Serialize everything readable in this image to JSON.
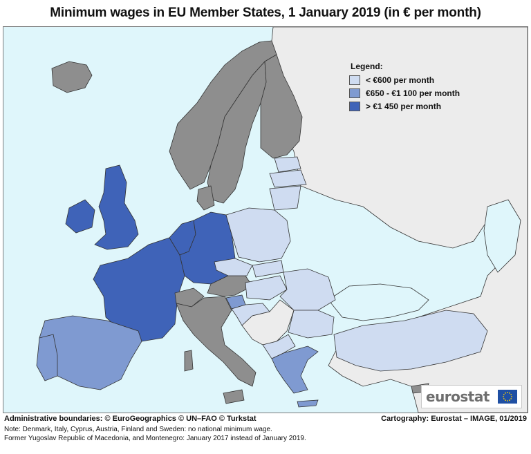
{
  "title": "Minimum wages in EU Member States, 1 January 2019 (in € per month)",
  "colors": {
    "sea": "#dff6fb",
    "non_eu": "#ececec",
    "no_minimum_wage": "#8e8e8e",
    "low": "#cfdcf1",
    "mid": "#7f9ad1",
    "high": "#3f63b8",
    "border": "#333333"
  },
  "legend": {
    "title": "Legend:",
    "items": [
      {
        "label": "< €600 per month",
        "color": "#cfdcf1"
      },
      {
        "label": "€650 - €1 100 per month",
        "color": "#7f9ad1"
      },
      {
        "label": "> €1 450 per month",
        "color": "#3f63b8"
      }
    ]
  },
  "logo": {
    "text": "eurostat"
  },
  "footer": {
    "boundaries": "Administrative boundaries: © EuroGeographics © UN–FAO © Turkstat",
    "cartography": "Cartography: Eurostat – IMAGE, 01/2019",
    "note1": "Note: Denmark, Italy, Cyprus, Austria, Finland and Sweden: no national minimum wage.",
    "note2": "Former Yugoslav Republic of Macedonia, and Montenegro: January 2017 instead of January 2019."
  }
}
